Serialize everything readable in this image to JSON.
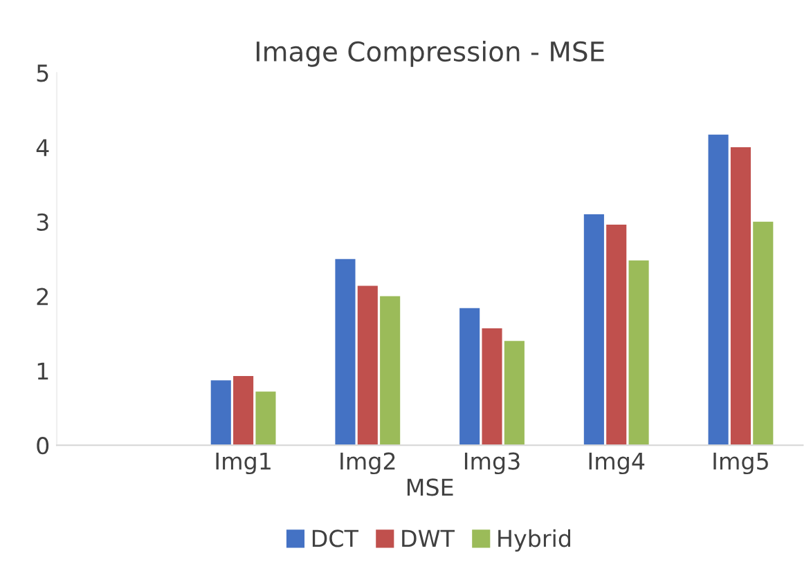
{
  "chart_data": {
    "type": "bar",
    "title": "Image Compression - MSE",
    "xlabel": "MSE",
    "categories": [
      null,
      "Img1",
      "Img2",
      "Img3",
      "Img4",
      "Img5"
    ],
    "series": [
      {
        "name": "DCT",
        "color": "#4472c4",
        "values": [
          null,
          0.87,
          2.5,
          1.84,
          3.1,
          4.17
        ]
      },
      {
        "name": "DWT",
        "color": "#c0504d",
        "values": [
          null,
          0.93,
          2.14,
          1.57,
          2.96,
          4.0
        ]
      },
      {
        "name": "Hybrid",
        "color": "#9bbb59",
        "values": [
          null,
          0.72,
          2.0,
          1.4,
          2.48,
          3.0
        ]
      }
    ],
    "ylim": [
      0,
      5
    ],
    "yticks": [
      0,
      1,
      2,
      3,
      4,
      5
    ],
    "grid": false,
    "legend": "bottom"
  }
}
